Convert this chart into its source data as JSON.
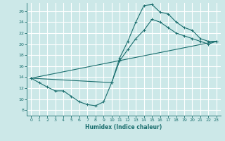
{
  "xlabel": "Humidex (Indice chaleur)",
  "xlim": [
    -0.5,
    23.5
  ],
  "ylim": [
    7,
    27.5
  ],
  "xticks": [
    0,
    1,
    2,
    3,
    4,
    5,
    6,
    7,
    8,
    9,
    10,
    11,
    12,
    13,
    14,
    15,
    16,
    17,
    18,
    19,
    20,
    21,
    22,
    23
  ],
  "yticks": [
    8,
    10,
    12,
    14,
    16,
    18,
    20,
    22,
    24,
    26
  ],
  "bg_color": "#cce8e8",
  "grid_color": "#ffffff",
  "line_color": "#1a6e6e",
  "line1_x": [
    0,
    1,
    2,
    3,
    4,
    5,
    6,
    7,
    8,
    9,
    10,
    11,
    12,
    13,
    14,
    15,
    16,
    17,
    18,
    19,
    20,
    21,
    22,
    23
  ],
  "line1_y": [
    13.8,
    13.0,
    12.2,
    11.5,
    11.5,
    10.5,
    9.5,
    9.0,
    8.8,
    9.5,
    13.0,
    17.5,
    20.5,
    24.0,
    27.0,
    27.2,
    25.8,
    25.5,
    24.0,
    23.0,
    22.5,
    21.0,
    20.5,
    20.5
  ],
  "line2_x": [
    0,
    10,
    11,
    12,
    13,
    14,
    15,
    16,
    17,
    18,
    19,
    20,
    21,
    22,
    23
  ],
  "line2_y": [
    13.8,
    13.0,
    17.0,
    19.0,
    21.0,
    22.5,
    24.5,
    24.0,
    23.0,
    22.0,
    21.5,
    21.0,
    20.5,
    20.0,
    20.5
  ],
  "line3_x": [
    0,
    23
  ],
  "line3_y": [
    13.8,
    20.5
  ]
}
